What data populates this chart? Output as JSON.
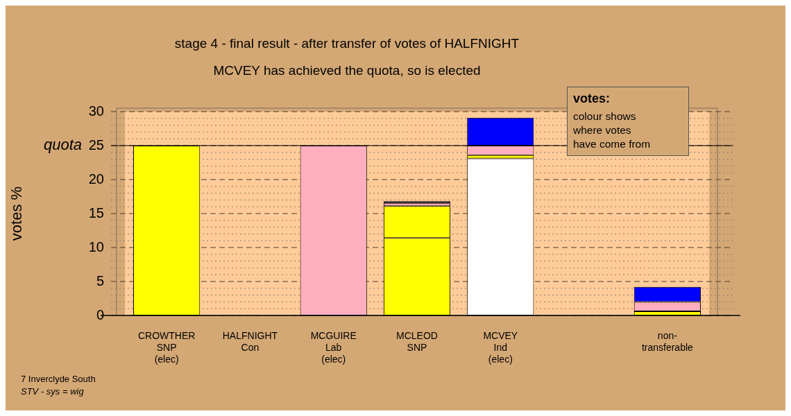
{
  "chart_data": {
    "type": "bar",
    "stacked": true,
    "title": "stage 4 - final result - after transfer of votes of HALFNIGHT",
    "subtitle": "MCVEY has achieved the quota, so is elected",
    "ylabel": "votes %",
    "categories": [
      "CROWTHER\nSNP\n(elec)",
      "HALFNIGHT\nCon",
      "MCGUIRE\nLab\n(elec)",
      "MCLEOD\nSNP",
      "MCVEY\nInd\n(elec)",
      null,
      "non-\ntransferable"
    ],
    "series": [
      {
        "color": "#ffffff",
        "values": [
          0,
          0,
          0,
          0,
          23.1,
          0,
          0
        ]
      },
      {
        "color": "#ffff00",
        "values": [
          25,
          0,
          0,
          11.4,
          0.5,
          0,
          0.6
        ]
      },
      {
        "color": "#ffff00",
        "values": [
          0,
          0,
          0,
          4.7,
          0,
          0,
          0
        ]
      },
      {
        "color": "#ffafc0",
        "values": [
          0,
          0,
          25,
          0.4,
          1.4,
          0,
          1.4
        ]
      },
      {
        "color": "#1a1050",
        "values": [
          0,
          0,
          0,
          0.3,
          0,
          0,
          0
        ]
      },
      {
        "color": "#0000ff",
        "values": [
          0,
          0,
          0,
          0,
          4.1,
          0,
          2.2
        ]
      }
    ],
    "ylim": [
      0,
      30
    ],
    "yticks": [
      0,
      {
        "value": 1,
        "label": null
      },
      {
        "value": 2,
        "label": null
      },
      {
        "value": 3,
        "label": null
      },
      {
        "value": 4,
        "label": null
      },
      5,
      {
        "value": 6,
        "label": null
      },
      {
        "value": 7,
        "label": null
      },
      {
        "value": 8,
        "label": null
      },
      {
        "value": 9,
        "label": null
      },
      10,
      {
        "value": 11,
        "label": null
      },
      {
        "value": 12,
        "label": null
      },
      {
        "value": 13,
        "label": null
      },
      {
        "value": 14,
        "label": null
      },
      15,
      {
        "value": 16,
        "label": null
      },
      {
        "value": 17,
        "label": null
      },
      {
        "value": 18,
        "label": null
      },
      {
        "value": 19,
        "label": null
      },
      20,
      {
        "value": 21,
        "label": null
      },
      {
        "value": 22,
        "label": null
      },
      {
        "value": 23,
        "label": null
      },
      {
        "value": 24,
        "label": null
      },
      25,
      {
        "value": 26,
        "label": null
      },
      {
        "value": 27,
        "label": null
      },
      {
        "value": 28,
        "label": null
      },
      {
        "value": 29,
        "label": null
      },
      30
    ],
    "grid": true,
    "legend": false,
    "ref_lines": [
      {
        "axis": "y",
        "value": 25,
        "label": "quota",
        "color": "#000000"
      }
    ],
    "annotations": [
      "votes:",
      "colour shows\nwhere votes\nhave come from",
      "7 Inverclyde South",
      "STV - sys = wig"
    ]
  }
}
